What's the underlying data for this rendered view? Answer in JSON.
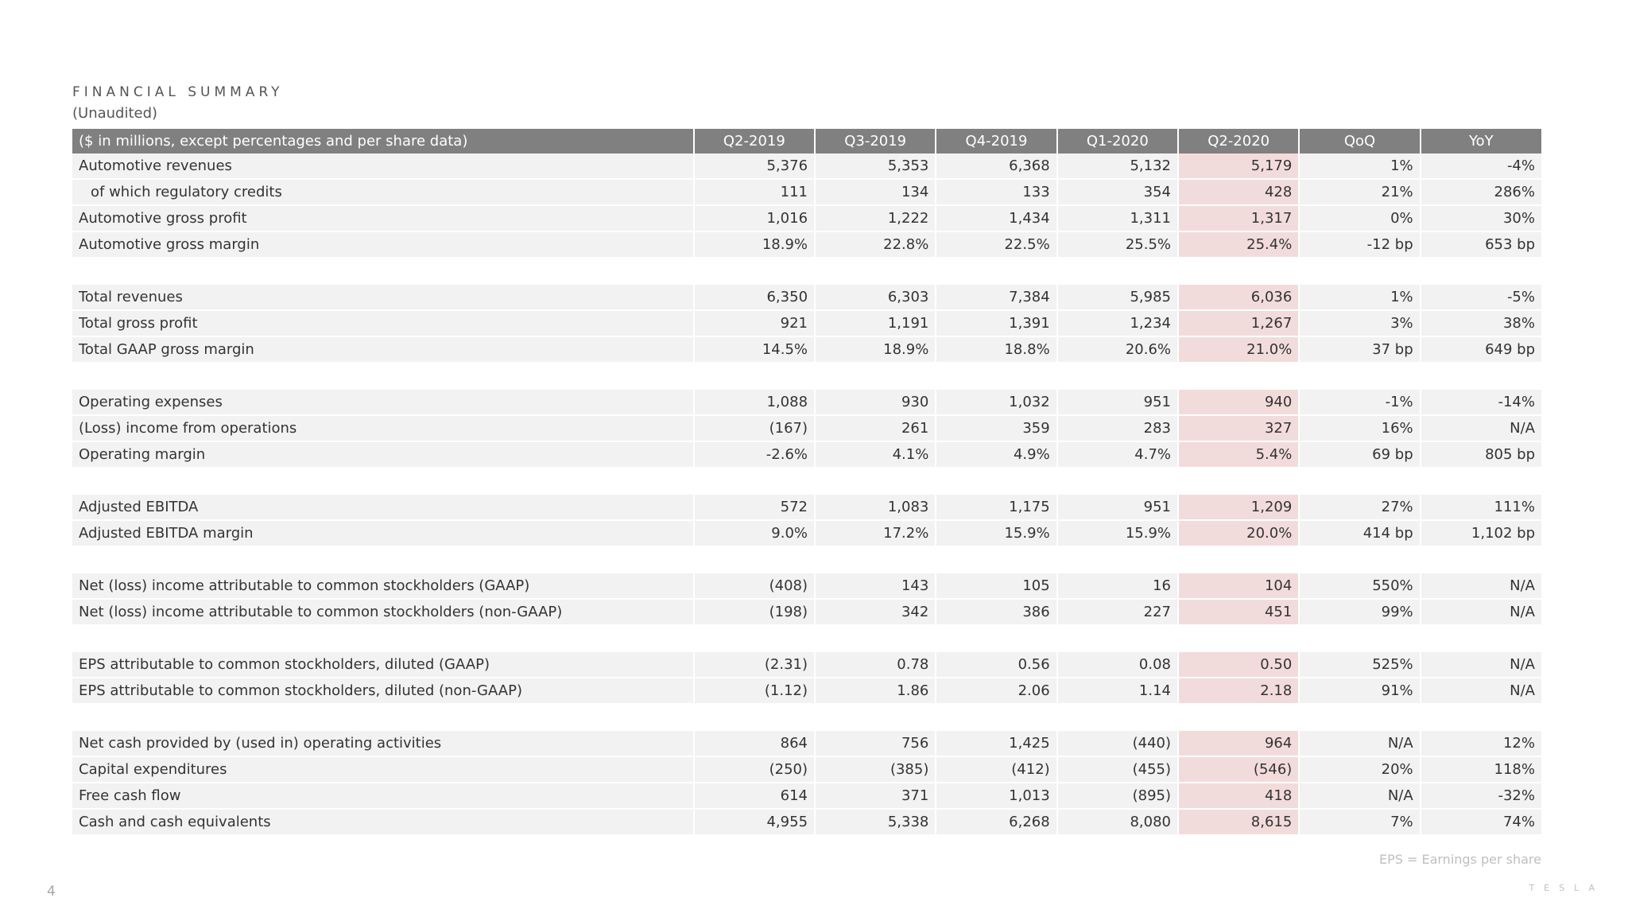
{
  "title": "FINANCIAL SUMMARY",
  "subtitle": "(Unaudited)",
  "header": {
    "label": "($ in millions, except percentages and per share data)",
    "columns": [
      "Q2-2019",
      "Q3-2019",
      "Q4-2019",
      "Q1-2020",
      "Q2-2020",
      "QoQ",
      "YoY"
    ]
  },
  "rows": [
    {
      "label": "Automotive revenues",
      "values": [
        "5,376",
        "5,353",
        "6,368",
        "5,132",
        "5,179",
        "1%",
        "-4%"
      ]
    },
    {
      "label": "of which regulatory credits",
      "values": [
        "111",
        "134",
        "133",
        "354",
        "428",
        "21%",
        "286%"
      ]
    },
    {
      "label": "Automotive gross profit",
      "values": [
        "1,016",
        "1,222",
        "1,434",
        "1,311",
        "1,317",
        "0%",
        "30%"
      ]
    },
    {
      "label": "Automotive gross margin",
      "values": [
        "18.9%",
        "22.8%",
        "22.5%",
        "25.5%",
        "25.4%",
        "-12 bp",
        "653 bp"
      ]
    },
    {
      "label": "Total revenues",
      "values": [
        "6,350",
        "6,303",
        "7,384",
        "5,985",
        "6,036",
        "1%",
        "-5%"
      ]
    },
    {
      "label": "Total gross profit",
      "values": [
        "921",
        "1,191",
        "1,391",
        "1,234",
        "1,267",
        "3%",
        "38%"
      ]
    },
    {
      "label": "Total GAAP gross margin",
      "values": [
        "14.5%",
        "18.9%",
        "18.8%",
        "20.6%",
        "21.0%",
        "37 bp",
        "649 bp"
      ]
    },
    {
      "label": "Operating expenses",
      "values": [
        "1,088",
        "930",
        "1,032",
        "951",
        "940",
        "-1%",
        "-14%"
      ]
    },
    {
      "label": "(Loss) income from operations",
      "values": [
        "(167)",
        "261",
        "359",
        "283",
        "327",
        "16%",
        "N/A"
      ]
    },
    {
      "label": "Operating margin",
      "values": [
        "-2.6%",
        "4.1%",
        "4.9%",
        "4.7%",
        "5.4%",
        "69 bp",
        "805 bp"
      ]
    },
    {
      "label": "Adjusted EBITDA",
      "values": [
        "572",
        "1,083",
        "1,175",
        "951",
        "1,209",
        "27%",
        "111%"
      ]
    },
    {
      "label": "Adjusted EBITDA margin",
      "values": [
        "9.0%",
        "17.2%",
        "15.9%",
        "15.9%",
        "20.0%",
        "414 bp",
        "1,102 bp"
      ]
    },
    {
      "label": "Net (loss) income attributable to common stockholders (GAAP)",
      "values": [
        "(408)",
        "143",
        "105",
        "16",
        "104",
        "550%",
        "N/A"
      ]
    },
    {
      "label": "Net (loss) income attributable to common stockholders (non-GAAP)",
      "values": [
        "(198)",
        "342",
        "386",
        "227",
        "451",
        "99%",
        "N/A"
      ]
    },
    {
      "label": "EPS attributable to common stockholders, diluted (GAAP)",
      "values": [
        "(2.31)",
        "0.78",
        "0.56",
        "0.08",
        "0.50",
        "525%",
        "N/A"
      ]
    },
    {
      "label": "EPS attributable to common stockholders, diluted (non-GAAP)",
      "values": [
        "(1.12)",
        "1.86",
        "2.06",
        "1.14",
        "2.18",
        "91%",
        "N/A"
      ]
    },
    {
      "label": "Net cash provided by (used in) operating activities",
      "values": [
        "864",
        "756",
        "1,425",
        "(440)",
        "964",
        "N/A",
        "12%"
      ]
    },
    {
      "label": "Capital expenditures",
      "values": [
        "(250)",
        "(385)",
        "(412)",
        "(455)",
        "(546)",
        "20%",
        "118%"
      ]
    },
    {
      "label": "Free cash flow",
      "values": [
        "614",
        "371",
        "1,013",
        "(895)",
        "418",
        "N/A",
        "-32%"
      ]
    },
    {
      "label": "Cash and cash equivalents",
      "values": [
        "4,955",
        "5,338",
        "6,268",
        "8,080",
        "8,615",
        "7%",
        "74%"
      ]
    }
  ],
  "footnote": "EPS = Earnings per share",
  "page_number": "4",
  "logo": "TESLA",
  "colors": {
    "header_bg": "#808080",
    "row_bg": "#f2f2f2",
    "highlight_bg": "#f2dcdb"
  }
}
